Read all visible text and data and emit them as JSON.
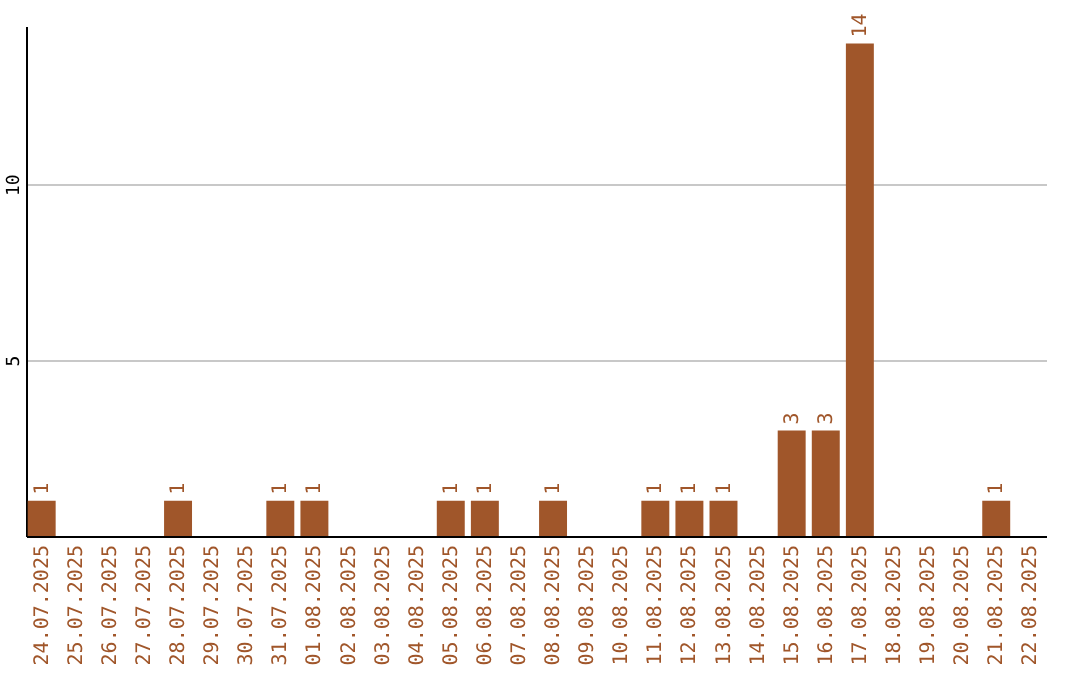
{
  "chart_data": {
    "type": "bar",
    "categories": [
      "24.07.2025",
      "25.07.2025",
      "26.07.2025",
      "27.07.2025",
      "28.07.2025",
      "29.07.2025",
      "30.07.2025",
      "31.07.2025",
      "01.08.2025",
      "02.08.2025",
      "03.08.2025",
      "04.08.2025",
      "05.08.2025",
      "06.08.2025",
      "07.08.2025",
      "08.08.2025",
      "09.08.2025",
      "10.08.2025",
      "11.08.2025",
      "12.08.2025",
      "13.08.2025",
      "14.08.2025",
      "15.08.2025",
      "16.08.2025",
      "17.08.2025",
      "18.08.2025",
      "19.08.2025",
      "20.08.2025",
      "21.08.2025",
      "22.08.2025"
    ],
    "values": [
      1,
      0,
      0,
      0,
      1,
      0,
      0,
      1,
      1,
      0,
      0,
      0,
      1,
      1,
      0,
      1,
      0,
      0,
      1,
      1,
      1,
      0,
      3,
      3,
      14,
      0,
      0,
      0,
      1,
      0
    ],
    "value_labels": [
      "1",
      null,
      null,
      null,
      "1",
      null,
      null,
      "1",
      "1",
      null,
      null,
      null,
      "1",
      "1",
      null,
      "1",
      null,
      null,
      "1",
      "1",
      "1",
      null,
      "3",
      "3",
      "14",
      null,
      null,
      null,
      "1",
      null
    ],
    "color": "#a0562a",
    "ylim": [
      0,
      14.5
    ],
    "yticks": [
      5,
      10
    ],
    "grid": "y"
  }
}
